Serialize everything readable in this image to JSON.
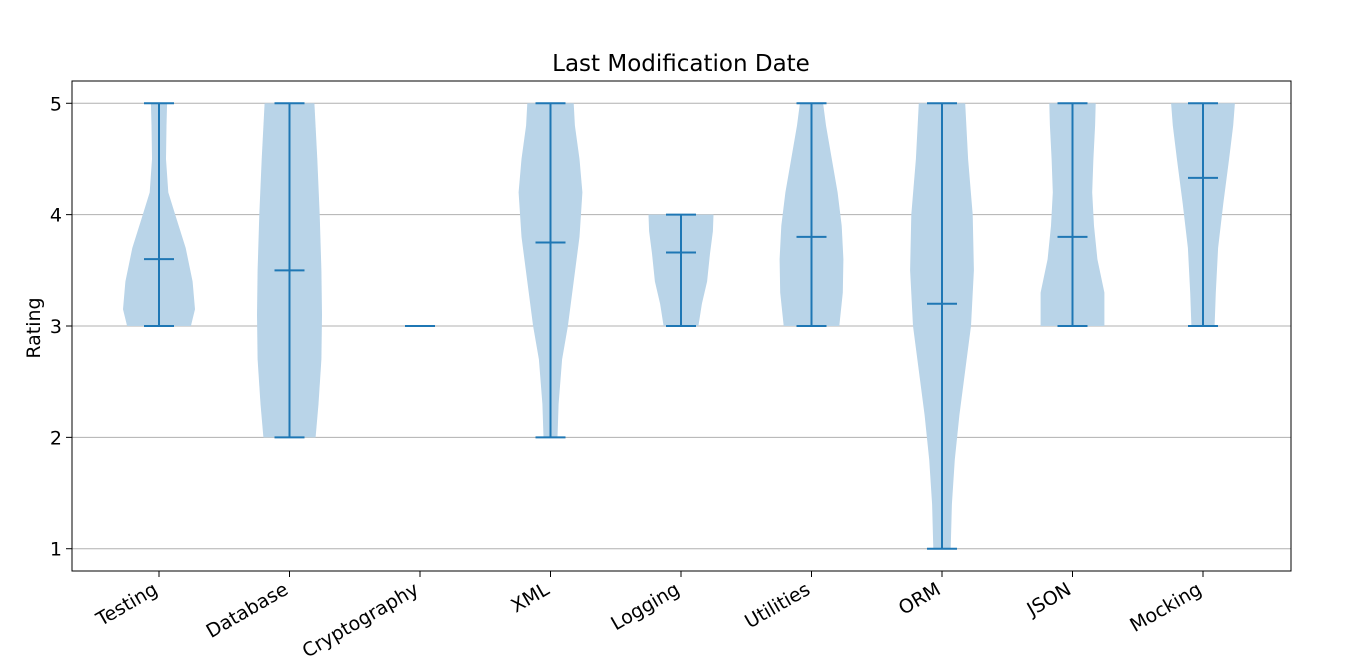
{
  "chart_data": {
    "type": "violin",
    "title": "Last Modification Date",
    "ylabel": "Rating",
    "xlabel": "",
    "ylim": [
      0.8,
      5.2
    ],
    "yticks": [
      1,
      2,
      3,
      4,
      5
    ],
    "grid": "y",
    "colors": {
      "stroke": "#1f77b4",
      "fill": "#b9d4e8",
      "grid": "#b0b0b0"
    },
    "categories": [
      "Testing",
      "Database",
      "Cryptography",
      "XML",
      "Logging",
      "Utilities",
      "ORM",
      "JSON",
      "Mocking"
    ],
    "series": [
      {
        "category": "Testing",
        "min": 3,
        "max": 5,
        "mean": 3.6,
        "density": [
          [
            3,
            0.55
          ],
          [
            3.15,
            0.62
          ],
          [
            3.4,
            0.58
          ],
          [
            3.7,
            0.46
          ],
          [
            4.0,
            0.28
          ],
          [
            4.2,
            0.16
          ],
          [
            4.5,
            0.12
          ],
          [
            4.8,
            0.13
          ],
          [
            5,
            0.14
          ]
        ]
      },
      {
        "category": "Database",
        "min": 2,
        "max": 5,
        "mean": 3.5,
        "density": [
          [
            2,
            0.45
          ],
          [
            2.3,
            0.5
          ],
          [
            2.7,
            0.55
          ],
          [
            3.1,
            0.56
          ],
          [
            3.5,
            0.55
          ],
          [
            4.0,
            0.52
          ],
          [
            4.5,
            0.48
          ],
          [
            5,
            0.43
          ]
        ]
      },
      {
        "category": "Cryptography",
        "min": 3,
        "max": 3,
        "mean": 3,
        "density": []
      },
      {
        "category": "XML",
        "min": 2,
        "max": 5,
        "mean": 3.75,
        "density": [
          [
            2,
            0.12
          ],
          [
            2.3,
            0.14
          ],
          [
            2.7,
            0.2
          ],
          [
            3.0,
            0.3
          ],
          [
            3.4,
            0.4
          ],
          [
            3.8,
            0.5
          ],
          [
            4.2,
            0.55
          ],
          [
            4.5,
            0.5
          ],
          [
            4.8,
            0.42
          ],
          [
            5,
            0.4
          ]
        ]
      },
      {
        "category": "Logging",
        "min": 3,
        "max": 4,
        "mean": 3.66,
        "density": [
          [
            3,
            0.3
          ],
          [
            3.2,
            0.36
          ],
          [
            3.4,
            0.45
          ],
          [
            3.65,
            0.5
          ],
          [
            3.85,
            0.55
          ],
          [
            4,
            0.56
          ]
        ]
      },
      {
        "category": "Utilities",
        "min": 3,
        "max": 5,
        "mean": 3.8,
        "density": [
          [
            3,
            0.48
          ],
          [
            3.3,
            0.54
          ],
          [
            3.6,
            0.55
          ],
          [
            3.9,
            0.52
          ],
          [
            4.2,
            0.45
          ],
          [
            4.5,
            0.35
          ],
          [
            4.8,
            0.25
          ],
          [
            5,
            0.2
          ]
        ]
      },
      {
        "category": "ORM",
        "min": 1,
        "max": 5,
        "mean": 3.2,
        "density": [
          [
            1,
            0.15
          ],
          [
            1.4,
            0.17
          ],
          [
            1.8,
            0.22
          ],
          [
            2.2,
            0.3
          ],
          [
            2.6,
            0.4
          ],
          [
            3.0,
            0.5
          ],
          [
            3.5,
            0.55
          ],
          [
            4.0,
            0.53
          ],
          [
            4.5,
            0.45
          ],
          [
            5,
            0.4
          ]
        ]
      },
      {
        "category": "JSON",
        "min": 3,
        "max": 5,
        "mean": 3.8,
        "density": [
          [
            3,
            0.55
          ],
          [
            3.3,
            0.55
          ],
          [
            3.6,
            0.43
          ],
          [
            3.9,
            0.37
          ],
          [
            4.2,
            0.34
          ],
          [
            4.5,
            0.36
          ],
          [
            4.8,
            0.39
          ],
          [
            5,
            0.4
          ]
        ]
      },
      {
        "category": "Mocking",
        "min": 3,
        "max": 5,
        "mean": 4.33,
        "density": [
          [
            3,
            0.2
          ],
          [
            3.3,
            0.22
          ],
          [
            3.7,
            0.26
          ],
          [
            4.1,
            0.35
          ],
          [
            4.5,
            0.45
          ],
          [
            4.8,
            0.52
          ],
          [
            5,
            0.55
          ]
        ]
      }
    ]
  }
}
